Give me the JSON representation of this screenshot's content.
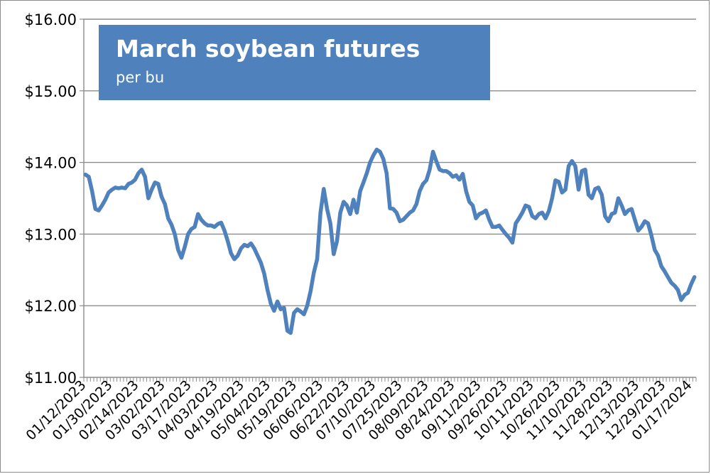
{
  "chart_data": {
    "type": "line",
    "title": "March soybean futures",
    "subtitle": "per bu",
    "xlabel": "",
    "ylabel": "",
    "ylim": [
      11,
      16
    ],
    "y_ticks": [
      "$11.00",
      "$12.00",
      "$13.00",
      "$14.00",
      "$15.00",
      "$16.00"
    ],
    "y_tick_values": [
      11,
      12,
      13,
      14,
      15,
      16
    ],
    "grid": "horizontal",
    "legend": "none",
    "x_tick_labels": [
      "01/12/2023",
      "01/30/2023",
      "02/14/2023",
      "03/02/2023",
      "03/17/2023",
      "04/03/2023",
      "04/19/2023",
      "05/04/2023",
      "05/19/2023",
      "06/06/2023",
      "06/22/2023",
      "07/10/2023",
      "07/25/2023",
      "08/09/2023",
      "08/24/2023",
      "09/11/2023",
      "09/26/2023",
      "10/11/2023",
      "10/26/2023",
      "11/10/2023",
      "11/28/2023",
      "12/13/2023",
      "12/29/2023",
      "01/17/2024"
    ],
    "series_color": "#4f81bd",
    "series": [
      {
        "values": [
          13.83,
          13.8,
          13.6,
          13.35,
          13.33,
          13.4,
          13.48,
          13.58,
          13.62,
          13.65,
          13.64,
          13.65,
          13.64,
          13.7,
          13.72,
          13.76,
          13.85,
          13.9,
          13.8,
          13.5,
          13.62,
          13.72,
          13.7,
          13.52,
          13.42,
          13.22,
          13.13,
          13.0,
          12.78,
          12.67,
          12.82,
          13.0,
          13.07,
          13.1,
          13.28,
          13.2,
          13.15,
          13.12,
          13.12,
          13.1,
          13.14,
          13.16,
          13.05,
          12.9,
          12.73,
          12.65,
          12.7,
          12.8,
          12.85,
          12.83,
          12.87,
          12.8,
          12.7,
          12.6,
          12.45,
          12.22,
          12.03,
          11.93,
          12.06,
          11.95,
          11.97,
          11.65,
          11.62,
          11.9,
          11.95,
          11.92,
          11.88,
          12.0,
          12.2,
          12.46,
          12.65,
          13.3,
          13.63,
          13.35,
          13.15,
          12.72,
          12.9,
          13.3,
          13.45,
          13.4,
          13.28,
          13.48,
          13.3,
          13.6,
          13.72,
          13.85,
          14.0,
          14.1,
          14.18,
          14.15,
          14.05,
          13.85,
          13.36,
          13.35,
          13.3,
          13.18,
          13.2,
          13.25,
          13.3,
          13.33,
          13.42,
          13.6,
          13.7,
          13.75,
          13.9,
          14.15,
          14.02,
          13.9,
          13.88,
          13.88,
          13.85,
          13.8,
          13.82,
          13.76,
          13.84,
          13.6,
          13.45,
          13.4,
          13.22,
          13.28,
          13.3,
          13.33,
          13.2,
          13.1,
          13.1,
          13.12,
          13.06,
          13.0,
          12.95,
          12.88,
          13.15,
          13.22,
          13.3,
          13.4,
          13.38,
          13.25,
          13.22,
          13.28,
          13.3,
          13.22,
          13.32,
          13.5,
          13.75,
          13.73,
          13.58,
          13.62,
          13.95,
          14.02,
          13.95,
          13.62,
          13.88,
          13.9,
          13.55,
          13.5,
          13.63,
          13.65,
          13.55,
          13.25,
          13.18,
          13.28,
          13.3,
          13.5,
          13.4,
          13.28,
          13.33,
          13.35,
          13.2,
          13.05,
          13.1,
          13.18,
          13.15,
          12.98,
          12.78,
          12.7,
          12.55,
          12.48,
          12.4,
          12.32,
          12.28,
          12.22,
          12.08,
          12.15,
          12.18,
          12.3,
          12.4
        ]
      }
    ]
  }
}
